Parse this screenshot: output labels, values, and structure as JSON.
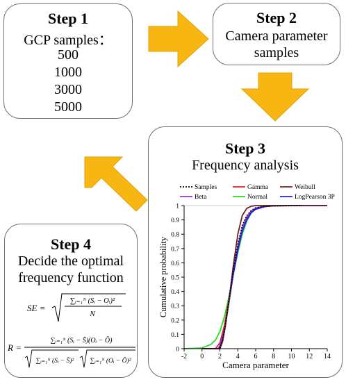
{
  "step1": {
    "title": "Step 1",
    "heading": "GCP samples：",
    "items": [
      "500",
      "1000",
      "3000",
      "5000"
    ]
  },
  "step2": {
    "title": "Step 2",
    "line1": "Camera parameter",
    "line2": "samples"
  },
  "step3": {
    "title": "Step 3",
    "subtitle": "Frequency analysis"
  },
  "step4": {
    "title": "Step 4",
    "line1": "Decide the optimal",
    "line2": "frequency function"
  },
  "formulas": {
    "se_lhs": "SE =",
    "se_num": "∑ᵢ₌₁ᴺ (Sᵢ − Oᵢ)²",
    "se_den": "N",
    "r_lhs": "R =",
    "r_num": "∑ᵢ₌₁ᴺ (Sᵢ − S̄)(Oᵢ − Ō)",
    "r_den1": "∑ᵢ₌₁ᴺ (Sᵢ − S̄)²",
    "r_den2": "∑ᵢ₌₁ᴺ (Oᵢ − Ō)²"
  },
  "colors": {
    "arrow": "#f8b613",
    "arrow_edge": "#e3a000",
    "box_border": "#707070"
  },
  "chart_data": {
    "type": "line",
    "xlabel": "Camera parameter",
    "ylabel": "Cumulative probability",
    "xlim": [
      -2,
      14
    ],
    "ylim": [
      0,
      1
    ],
    "xticks": [
      "-2",
      "0",
      "2",
      "4",
      "6",
      "8",
      "10",
      "12",
      "14"
    ],
    "yticks": [
      "0",
      "0.1",
      "0.2",
      "0.3",
      "0.4",
      "0.5",
      "0.6",
      "0.7",
      "0.8",
      "0.9",
      "1"
    ],
    "legend": {
      "placement": "top",
      "entries": [
        "Samples",
        "Gamma",
        "Weibull",
        "Beta",
        "Normal",
        "LogPearson 3P"
      ]
    },
    "series": [
      {
        "name": "Normal",
        "color": "#22dd22",
        "dash": "",
        "x": [
          -2,
          0,
          1,
          1.5,
          2,
          2.5,
          3,
          3.5,
          4,
          4.5,
          5,
          5.5,
          6,
          7,
          8,
          14
        ],
        "y": [
          0,
          0.005,
          0.03,
          0.06,
          0.12,
          0.22,
          0.36,
          0.52,
          0.67,
          0.8,
          0.89,
          0.95,
          0.98,
          1,
          1,
          1
        ]
      },
      {
        "name": "Gamma",
        "color": "#e02020",
        "dash": "",
        "x": [
          0,
          1.5,
          2,
          2.5,
          3,
          3.5,
          4,
          4.5,
          5,
          5.5,
          6,
          7,
          8,
          10,
          14
        ],
        "y": [
          0,
          0,
          0.04,
          0.16,
          0.34,
          0.54,
          0.71,
          0.83,
          0.91,
          0.95,
          0.975,
          0.992,
          0.998,
          1,
          1
        ]
      },
      {
        "name": "Beta",
        "color": "#9b30d0",
        "dash": "",
        "x": [
          0,
          1.8,
          2,
          2.5,
          3,
          3.5,
          4,
          4.5,
          5,
          5.5,
          6,
          7,
          8,
          14
        ],
        "y": [
          0,
          0,
          0.02,
          0.13,
          0.32,
          0.53,
          0.71,
          0.84,
          0.92,
          0.96,
          0.98,
          0.995,
          1,
          1
        ]
      },
      {
        "name": "LogPearson 3P",
        "color": "#2020e0",
        "dash": "",
        "x": [
          0,
          1.9,
          2.2,
          2.5,
          3,
          3.5,
          4,
          4.5,
          5,
          5.5,
          6,
          7,
          8,
          14
        ],
        "y": [
          0,
          0,
          0.04,
          0.12,
          0.32,
          0.52,
          0.69,
          0.82,
          0.9,
          0.95,
          0.975,
          0.993,
          0.999,
          1
        ]
      },
      {
        "name": "Weibull",
        "color": "#6b2222",
        "dash": "",
        "x": [
          0,
          2,
          2.3,
          2.6,
          3,
          3.5,
          4,
          4.5,
          5,
          5.5,
          6,
          7,
          14
        ],
        "y": [
          0,
          0,
          0.05,
          0.15,
          0.33,
          0.58,
          0.8,
          0.93,
          0.98,
          0.995,
          1,
          1,
          1
        ]
      },
      {
        "name": "Samples",
        "color": "#000000",
        "dash": "2,2",
        "x": [
          2,
          2.3,
          2.6,
          3,
          3.5,
          4,
          4.5,
          5,
          5.5,
          6,
          7,
          8,
          9,
          10,
          11.2
        ],
        "y": [
          0,
          0.06,
          0.16,
          0.34,
          0.55,
          0.73,
          0.86,
          0.93,
          0.965,
          0.985,
          0.994,
          0.997,
          0.998,
          0.999,
          1
        ]
      }
    ]
  }
}
